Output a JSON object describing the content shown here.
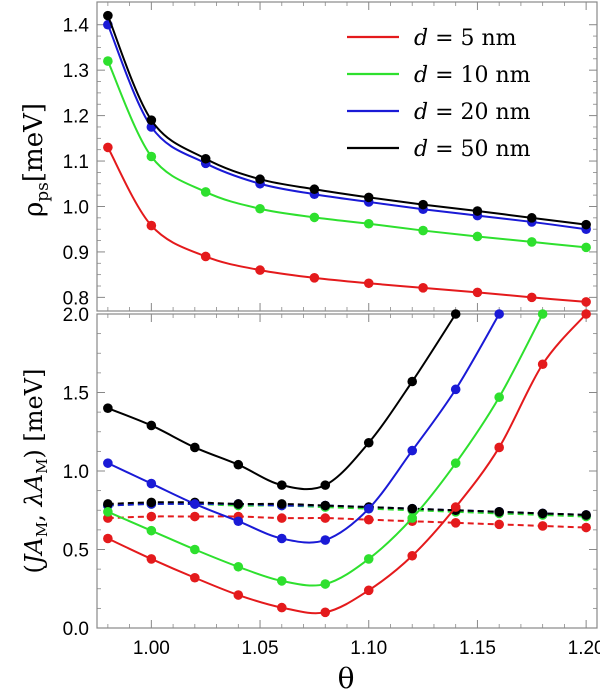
{
  "chart_data": [
    {
      "type": "line",
      "ylabel": "ρps[meV]",
      "ylabel_main": "ρ",
      "ylabel_sub": "ps",
      "ylabel_unit": "[meV]",
      "xlim": [
        0.975,
        1.205
      ],
      "ylim": [
        0.77,
        1.45
      ],
      "yticks": [
        0.8,
        0.9,
        1.0,
        1.1,
        1.2,
        1.3,
        1.4
      ],
      "ytick_labels": [
        "0.8",
        "0.9",
        "1.0",
        "1.1",
        "1.2",
        "1.3",
        "1.4"
      ],
      "legend_position": "top-right",
      "marker_x": [
        0.98,
        1.0,
        1.025,
        1.05,
        1.075,
        1.1,
        1.125,
        1.15,
        1.175,
        1.2
      ],
      "series": [
        {
          "name": "d = 5 nm",
          "name_var": "d",
          "name_eq": " = 5 nm",
          "color": "#e41a1c",
          "values": [
            1.13,
            0.958,
            0.89,
            0.86,
            0.843,
            0.831,
            0.821,
            0.811,
            0.8,
            0.79
          ]
        },
        {
          "name": "d = 10 nm",
          "name_var": "d",
          "name_eq": " = 10 nm",
          "color": "#2ee02e",
          "values": [
            1.32,
            1.11,
            1.032,
            0.995,
            0.976,
            0.962,
            0.947,
            0.934,
            0.922,
            0.91
          ]
        },
        {
          "name": "d = 20 nm",
          "name_var": "d",
          "name_eq": " = 20 nm",
          "color": "#1a1ad6",
          "values": [
            1.4,
            1.175,
            1.095,
            1.05,
            1.027,
            1.01,
            0.994,
            0.98,
            0.966,
            0.95
          ]
        },
        {
          "name": "d = 50 nm",
          "name_var": "d",
          "name_eq": " = 50 nm",
          "color": "#000000",
          "values": [
            1.42,
            1.19,
            1.105,
            1.06,
            1.038,
            1.02,
            1.004,
            0.99,
            0.975,
            0.96
          ]
        }
      ]
    },
    {
      "type": "line",
      "xlabel": "θ",
      "ylabel": "(JAM, λAM) [meV]",
      "ylabel_parts": [
        "(",
        "J",
        "A",
        "M",
        ", ",
        "λ",
        "A",
        "M",
        ") [meV]"
      ],
      "xlim": [
        0.975,
        1.205
      ],
      "ylim": [
        0.0,
        2.0
      ],
      "xticks": [
        1.0,
        1.05,
        1.1,
        1.15,
        1.2
      ],
      "xtick_labels": [
        "1.00",
        "1.05",
        "1.10",
        "1.15",
        "1.20"
      ],
      "yticks": [
        0.0,
        0.5,
        1.0,
        1.5,
        2.0
      ],
      "ytick_labels": [
        "0.0",
        "0.5",
        "1.0",
        "1.5",
        "2.0"
      ],
      "J_series": [
        {
          "name": "d = 5 nm",
          "color": "#e41a1c",
          "x": [
            0.98,
            1.0,
            1.02,
            1.04,
            1.06,
            1.08,
            1.1,
            1.12,
            1.14,
            1.16,
            1.18,
            1.2
          ],
          "values": [
            0.57,
            0.44,
            0.32,
            0.21,
            0.13,
            0.1,
            0.24,
            0.46,
            0.77,
            1.15,
            1.68,
            2.0
          ]
        },
        {
          "name": "d = 10 nm",
          "color": "#2ee02e",
          "x": [
            0.98,
            1.0,
            1.02,
            1.04,
            1.06,
            1.08,
            1.1,
            1.12,
            1.14,
            1.16,
            1.18
          ],
          "values": [
            0.74,
            0.62,
            0.5,
            0.39,
            0.3,
            0.28,
            0.44,
            0.7,
            1.05,
            1.47,
            2.0
          ]
        },
        {
          "name": "d = 20 nm",
          "color": "#1a1ad6",
          "x": [
            0.98,
            1.0,
            1.02,
            1.04,
            1.06,
            1.08,
            1.1,
            1.12,
            1.14,
            1.16
          ],
          "values": [
            1.05,
            0.92,
            0.79,
            0.68,
            0.57,
            0.56,
            0.76,
            1.13,
            1.52,
            2.0
          ]
        },
        {
          "name": "d = 50 nm",
          "color": "#000000",
          "x": [
            0.98,
            1.0,
            1.02,
            1.04,
            1.06,
            1.08,
            1.1,
            1.12,
            1.14
          ],
          "values": [
            1.4,
            1.29,
            1.15,
            1.04,
            0.91,
            0.91,
            1.18,
            1.57,
            2.0
          ]
        }
      ],
      "lambda_series": [
        {
          "name": "d = 5 nm",
          "color": "#e41a1c",
          "x": [
            0.98,
            1.0,
            1.02,
            1.04,
            1.06,
            1.08,
            1.1,
            1.12,
            1.14,
            1.16,
            1.18,
            1.2
          ],
          "values": [
            0.7,
            0.71,
            0.71,
            0.71,
            0.7,
            0.7,
            0.69,
            0.68,
            0.67,
            0.66,
            0.65,
            0.64
          ]
        },
        {
          "name": "d = 10 nm",
          "color": "#2ee02e",
          "x": [
            0.98,
            1.0,
            1.02,
            1.04,
            1.06,
            1.08,
            1.1,
            1.12,
            1.14,
            1.16,
            1.18,
            1.2
          ],
          "values": [
            0.78,
            0.79,
            0.79,
            0.78,
            0.78,
            0.77,
            0.76,
            0.75,
            0.74,
            0.73,
            0.72,
            0.71
          ]
        },
        {
          "name": "d = 20 nm",
          "color": "#1a1ad6",
          "x": [
            0.98,
            1.0,
            1.02,
            1.04,
            1.06,
            1.08,
            1.1,
            1.12,
            1.14,
            1.16,
            1.18,
            1.2
          ],
          "values": [
            0.78,
            0.79,
            0.79,
            0.79,
            0.78,
            0.78,
            0.77,
            0.76,
            0.75,
            0.74,
            0.73,
            0.72
          ]
        },
        {
          "name": "d = 50 nm",
          "color": "#000000",
          "x": [
            0.98,
            1.0,
            1.02,
            1.04,
            1.06,
            1.08,
            1.1,
            1.12,
            1.14,
            1.16,
            1.18,
            1.2
          ],
          "values": [
            0.79,
            0.8,
            0.8,
            0.79,
            0.79,
            0.78,
            0.77,
            0.76,
            0.75,
            0.74,
            0.73,
            0.72
          ]
        }
      ]
    }
  ]
}
